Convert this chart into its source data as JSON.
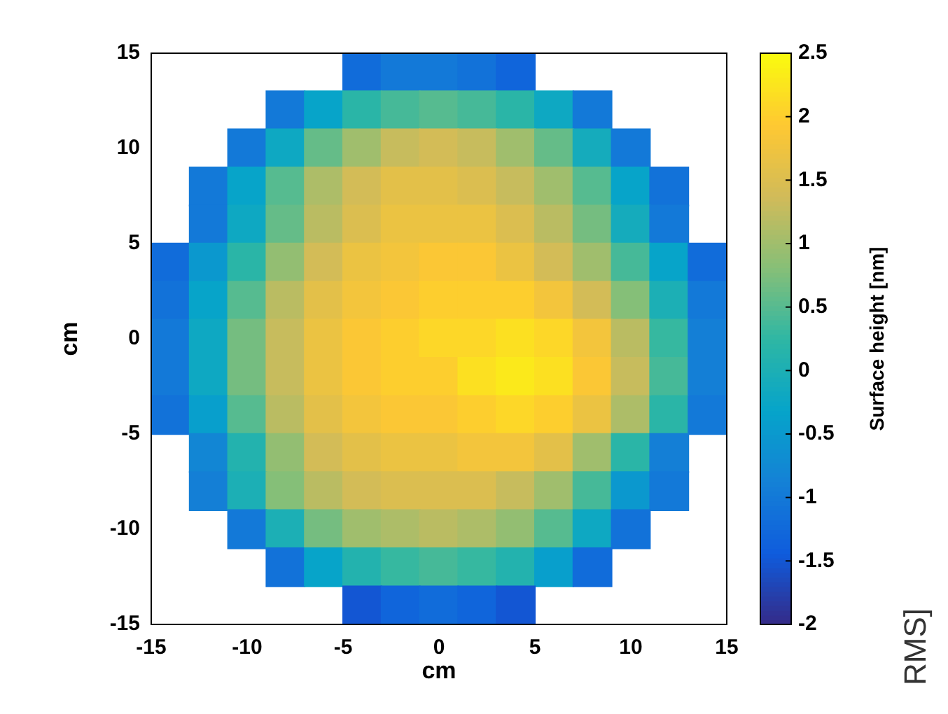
{
  "chart_data": {
    "type": "scatter",
    "marker": "square",
    "xlabel": "cm",
    "ylabel": "cm",
    "clabel": "Surface height [nm]",
    "xlim": [
      -15,
      15
    ],
    "ylim": [
      -15,
      15
    ],
    "xticks": [
      -15,
      -10,
      -5,
      0,
      5,
      10,
      15
    ],
    "yticks": [
      -15,
      -10,
      -5,
      0,
      5,
      10,
      15
    ],
    "clim": [
      -2,
      2.5
    ],
    "cticks": [
      -2,
      -1.5,
      -1,
      -0.5,
      0,
      0.5,
      1,
      1.5,
      2,
      2.5
    ],
    "x": [
      -4,
      -2,
      0,
      2,
      4,
      -8,
      -6,
      -4,
      -2,
      0,
      2,
      4,
      6,
      8,
      -10,
      -8,
      -6,
      -4,
      -2,
      0,
      2,
      4,
      6,
      8,
      10,
      -12,
      -10,
      -8,
      -6,
      -4,
      -2,
      0,
      2,
      4,
      6,
      8,
      10,
      12,
      -12,
      -10,
      -8,
      -6,
      -4,
      -2,
      0,
      2,
      4,
      6,
      8,
      10,
      12,
      -14,
      -12,
      -10,
      -8,
      -6,
      -4,
      -2,
      0,
      2,
      4,
      6,
      8,
      10,
      12,
      14,
      -14,
      -12,
      -10,
      -8,
      -6,
      -4,
      -2,
      0,
      2,
      4,
      6,
      8,
      10,
      12,
      14,
      -14,
      -12,
      -10,
      -8,
      -6,
      -4,
      -2,
      0,
      2,
      4,
      6,
      8,
      10,
      12,
      14,
      -14,
      -12,
      -10,
      -8,
      -6,
      -4,
      -2,
      0,
      2,
      4,
      6,
      8,
      10,
      12,
      14,
      -14,
      -12,
      -10,
      -8,
      -6,
      -4,
      -2,
      0,
      2,
      4,
      6,
      8,
      10,
      12,
      14,
      -12,
      -10,
      -8,
      -6,
      -4,
      -2,
      0,
      2,
      4,
      6,
      8,
      10,
      12,
      -12,
      -10,
      -8,
      -6,
      -4,
      -2,
      0,
      2,
      4,
      6,
      8,
      10,
      12,
      -10,
      -8,
      -6,
      -4,
      -2,
      0,
      2,
      4,
      6,
      8,
      10,
      -8,
      -6,
      -4,
      -2,
      0,
      2,
      4,
      6,
      8,
      -4,
      -2,
      0,
      2,
      4
    ],
    "values": [
      14,
      14,
      14,
      14,
      14,
      12,
      12,
      12,
      12,
      12,
      12,
      12,
      12,
      12,
      10,
      10,
      10,
      10,
      10,
      10,
      10,
      10,
      10,
      10,
      10,
      8,
      8,
      8,
      8,
      8,
      8,
      8,
      8,
      8,
      8,
      8,
      8,
      8,
      6,
      6,
      6,
      6,
      6,
      6,
      6,
      6,
      6,
      6,
      6,
      6,
      6,
      4,
      4,
      4,
      4,
      4,
      4,
      4,
      4,
      4,
      4,
      4,
      4,
      4,
      4,
      4,
      2,
      2,
      2,
      2,
      2,
      2,
      2,
      2,
      2,
      2,
      2,
      2,
      2,
      2,
      2,
      0,
      0,
      0,
      0,
      0,
      0,
      0,
      0,
      0,
      0,
      0,
      0,
      0,
      0,
      0,
      -2,
      -2,
      -2,
      -2,
      -2,
      -2,
      -2,
      -2,
      -2,
      -2,
      -2,
      -2,
      -2,
      -2,
      -2,
      -4,
      -4,
      -4,
      -4,
      -4,
      -4,
      -4,
      -4,
      -4,
      -4,
      -4,
      -4,
      -4,
      -4,
      -4,
      -6,
      -6,
      -6,
      -6,
      -6,
      -6,
      -6,
      -6,
      -6,
      -6,
      -6,
      -6,
      -6,
      -8,
      -8,
      -8,
      -8,
      -8,
      -8,
      -8,
      -8,
      -8,
      -8,
      -8,
      -8,
      -8,
      -10,
      -10,
      -10,
      -10,
      -10,
      -10,
      -10,
      -10,
      -10,
      -10,
      -10,
      -12,
      -12,
      -12,
      -12,
      -12,
      -12,
      -12,
      -12,
      -12,
      -14,
      -14,
      -14,
      -14,
      -14
    ],
    "cvalues": [
      -1.2,
      -1.0,
      -1.0,
      -1.1,
      -1.3,
      -1.0,
      -0.3,
      0.2,
      0.4,
      0.5,
      0.4,
      0.2,
      -0.2,
      -1.0,
      -1.0,
      -0.2,
      0.6,
      1.0,
      1.3,
      1.4,
      1.3,
      1.0,
      0.6,
      -0.1,
      -1.0,
      -1.0,
      -0.3,
      0.5,
      1.1,
      1.4,
      1.6,
      1.6,
      1.5,
      1.3,
      1.0,
      0.5,
      -0.3,
      -1.1,
      -1.0,
      -0.2,
      0.6,
      1.2,
      1.5,
      1.7,
      1.7,
      1.7,
      1.5,
      1.2,
      0.7,
      -0.1,
      -1.0,
      -1.2,
      -0.5,
      0.2,
      0.9,
      1.4,
      1.7,
      1.8,
      1.9,
      1.9,
      1.7,
      1.4,
      1.0,
      0.4,
      -0.3,
      -1.2,
      -1.1,
      -0.3,
      0.5,
      1.2,
      1.6,
      1.8,
      1.9,
      2.0,
      2.0,
      2.0,
      1.8,
      1.4,
      0.8,
      0.0,
      -1.0,
      -1.0,
      -0.2,
      0.7,
      1.3,
      1.7,
      1.9,
      2.0,
      2.1,
      2.1,
      2.2,
      2.1,
      1.8,
      1.2,
      0.3,
      -0.9,
      -1.0,
      -0.2,
      0.7,
      1.3,
      1.7,
      1.9,
      2.0,
      2.0,
      2.2,
      2.3,
      2.2,
      1.9,
      1.3,
      0.4,
      -0.9,
      -1.1,
      -0.4,
      0.5,
      1.2,
      1.6,
      1.8,
      1.9,
      1.9,
      2.0,
      2.1,
      2.0,
      1.7,
      1.1,
      0.2,
      -1.0,
      -0.8,
      0.1,
      0.9,
      1.4,
      1.6,
      1.7,
      1.7,
      1.8,
      1.8,
      1.6,
      1.0,
      0.2,
      -0.9,
      -0.9,
      0.0,
      0.8,
      1.2,
      1.4,
      1.5,
      1.5,
      1.5,
      1.3,
      1.0,
      0.4,
      -0.5,
      -1.0,
      -1.0,
      0.0,
      0.7,
      1.0,
      1.1,
      1.2,
      1.1,
      0.9,
      0.5,
      -0.2,
      -1.1,
      -1.1,
      -0.3,
      0.1,
      0.3,
      0.4,
      0.3,
      0.1,
      -0.4,
      -1.2,
      -1.5,
      -1.3,
      -1.2,
      -1.3,
      -1.5
    ],
    "annotations": [
      "RMS]"
    ]
  }
}
